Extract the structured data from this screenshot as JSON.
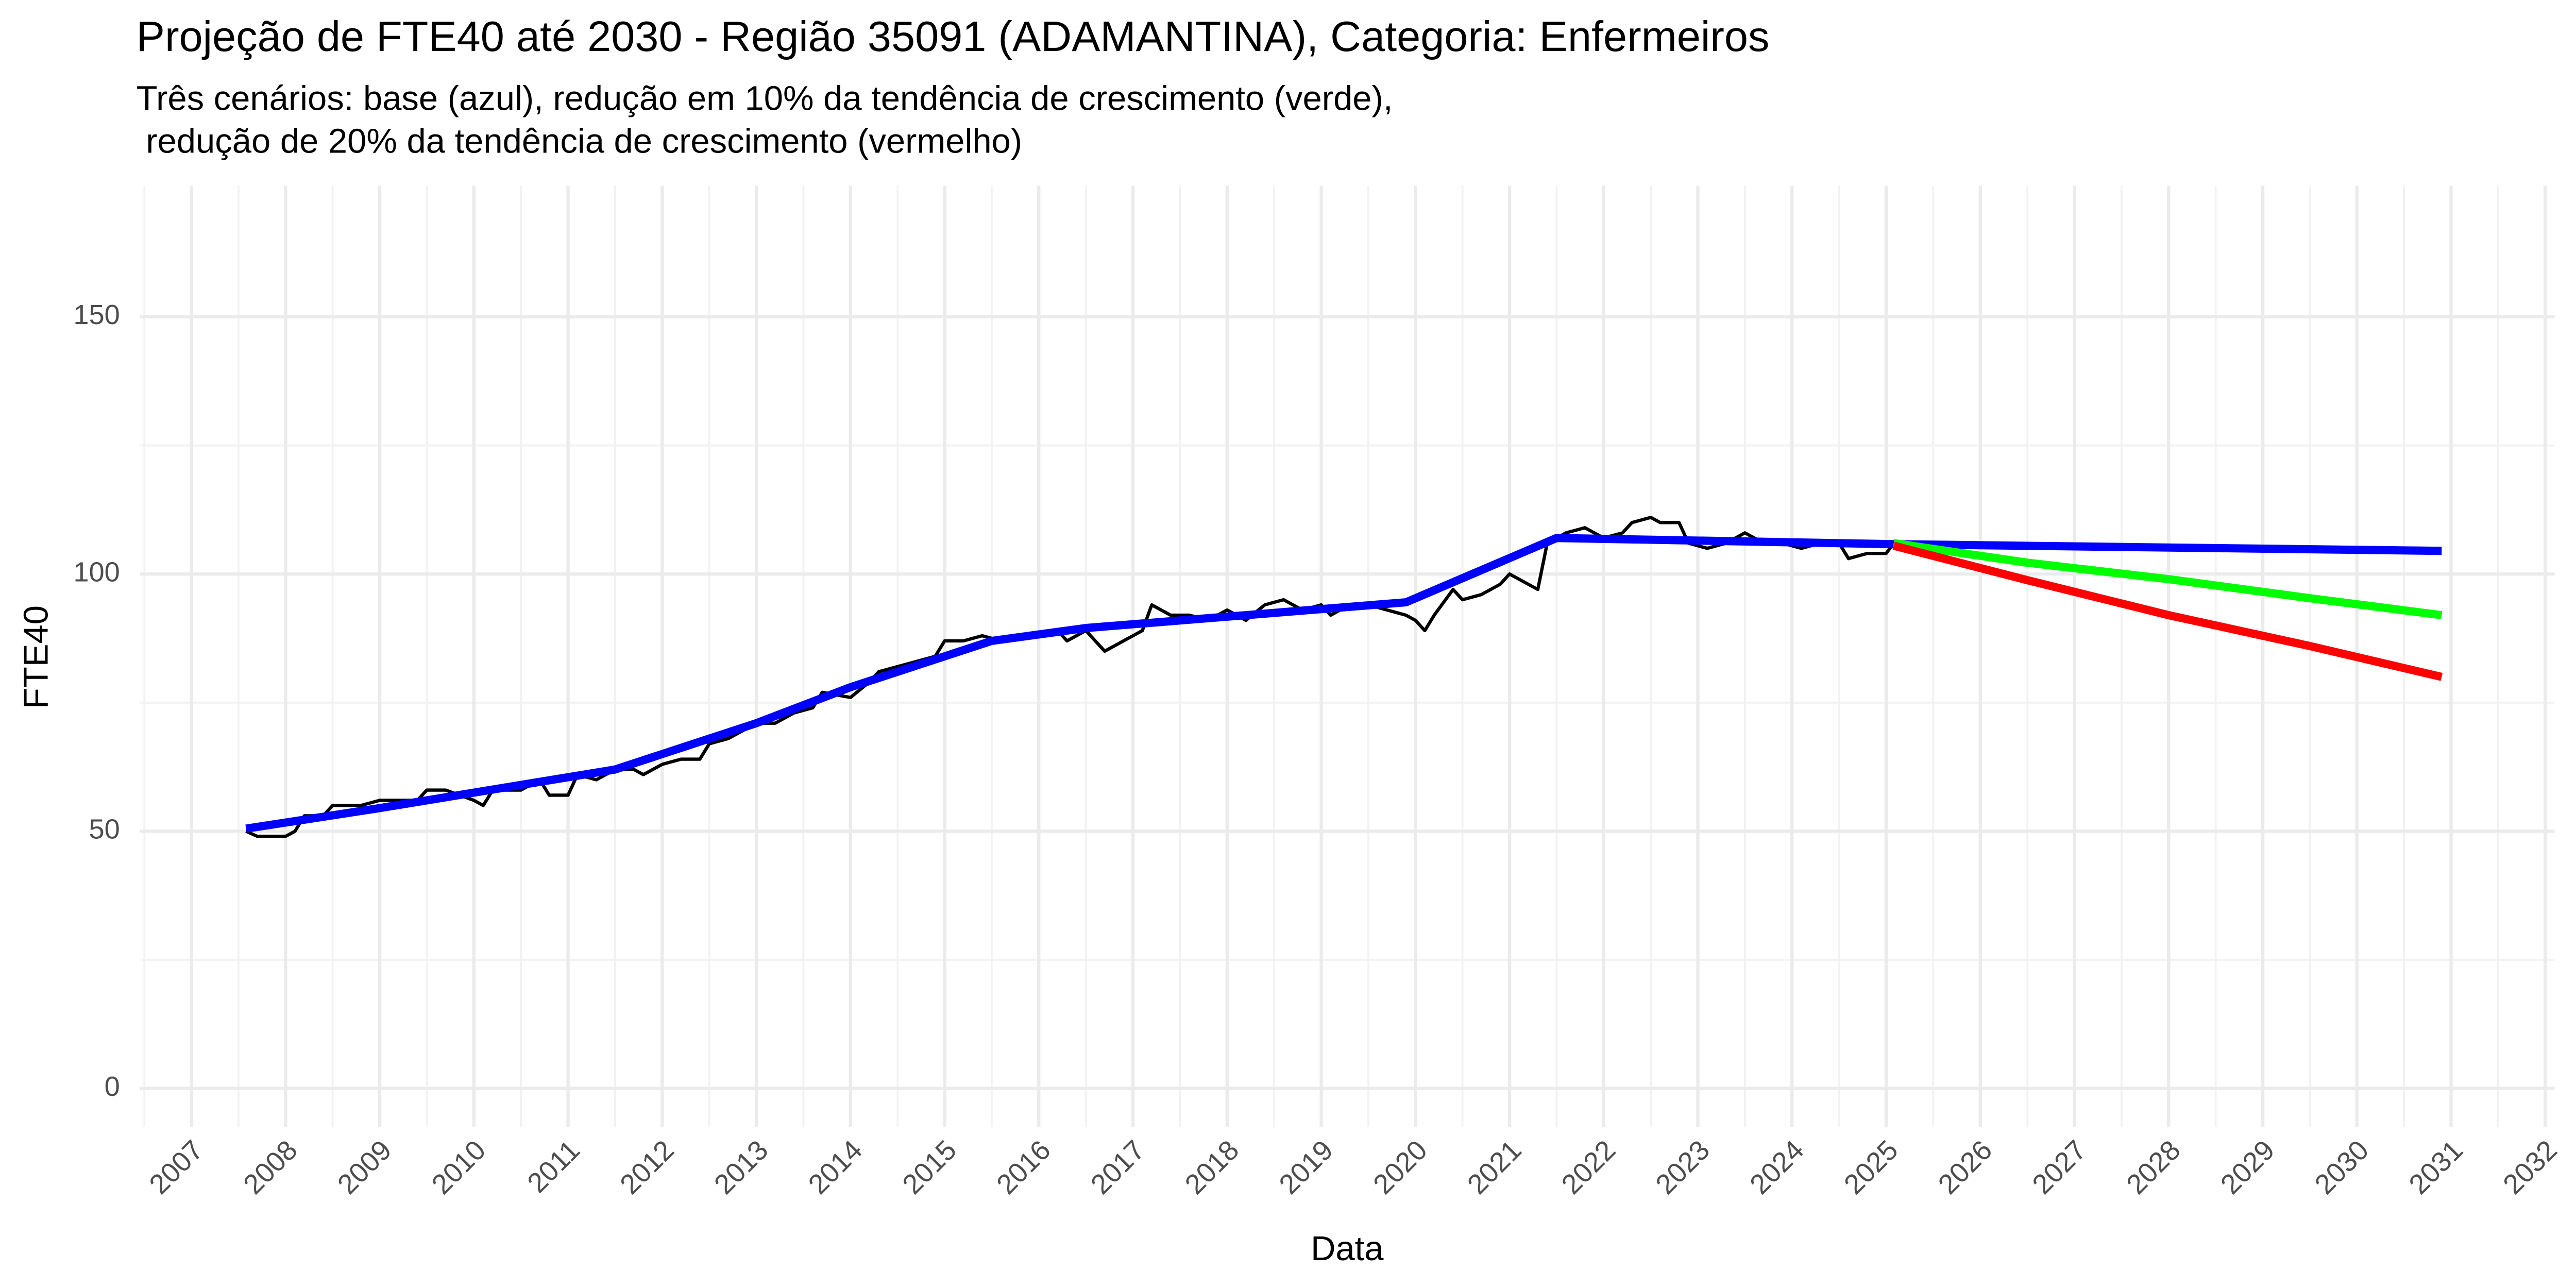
{
  "chart_data": {
    "type": "line",
    "title": "Projeção de FTE40 até 2030 - Região 35091 (ADAMANTINA), Categoria: Enfermeiros",
    "subtitle": [
      "Três cenários: base (azul), redução em 10% da tendência de crescimento (verde),",
      " redução de 20% da tendência de crescimento (vermelho)"
    ],
    "x_label": "Data",
    "y_label": "FTE40",
    "xlim": [
      2006.45,
      2032.1
    ],
    "xticks": [
      2007,
      2008,
      2009,
      2010,
      2011,
      2012,
      2013,
      2014,
      2015,
      2016,
      2017,
      2018,
      2019,
      2020,
      2021,
      2022,
      2023,
      2024,
      2025,
      2026,
      2027,
      2028,
      2029,
      2030,
      2031,
      2032
    ],
    "ylim": [
      -7.5,
      175.5
    ],
    "yticks": [
      0,
      50,
      100,
      150
    ],
    "grid": true,
    "series": [
      {
        "color": "#000000",
        "x": [
          2007.58,
          2007.7,
          2008.0,
          2008.1,
          2008.2,
          2008.4,
          2008.5,
          2008.7,
          2008.8,
          2009.0,
          2009.4,
          2009.5,
          2009.7,
          2010.0,
          2010.1,
          2010.2,
          2010.5,
          2010.7,
          2010.8,
          2011.0,
          2011.1,
          2011.3,
          2011.5,
          2011.7,
          2011.8,
          2012.0,
          2012.2,
          2012.4,
          2012.5,
          2012.7,
          2012.9,
          2013.0,
          2013.2,
          2013.4,
          2013.6,
          2013.7,
          2014.0,
          2014.2,
          2014.3,
          2014.5,
          2014.7,
          2014.9,
          2015.0,
          2015.2,
          2015.4,
          2015.6,
          2015.8,
          2016.0,
          2016.2,
          2016.3,
          2016.5,
          2016.7,
          2016.9,
          2017.0,
          2017.1,
          2017.2,
          2017.4,
          2017.6,
          2017.8,
          2018.0,
          2018.2,
          2018.4,
          2018.6,
          2018.8,
          2019.0,
          2019.1,
          2019.3,
          2019.5,
          2019.7,
          2019.9,
          2020.0,
          2020.1,
          2020.2,
          2020.4,
          2020.5,
          2020.7,
          2020.9,
          2021.0,
          2021.2,
          2021.3,
          2021.4,
          2021.6,
          2021.8,
          2022.0,
          2022.2,
          2022.3,
          2022.5,
          2022.6,
          2022.8,
          2022.9,
          2023.1,
          2023.3,
          2023.5,
          2023.7,
          2023.9,
          2024.1,
          2024.3,
          2024.5,
          2024.6,
          2024.8,
          2025.0,
          2025.08
        ],
        "values": [
          50,
          49,
          49,
          50,
          53,
          53,
          55,
          55,
          55,
          56,
          56,
          58,
          58,
          56,
          55,
          58,
          58,
          60,
          57,
          57,
          61,
          60,
          62,
          62,
          61,
          63,
          64,
          64,
          67,
          68,
          70,
          71,
          71,
          73,
          74,
          77,
          76,
          79,
          81,
          82,
          83,
          84,
          87,
          87,
          88,
          87,
          88,
          88,
          89,
          87,
          89,
          85,
          87,
          88,
          89,
          94,
          92,
          92,
          91,
          93,
          91,
          94,
          95,
          93,
          94,
          92,
          94,
          94,
          93,
          92,
          91,
          89,
          92,
          97,
          95,
          96,
          98,
          100,
          98,
          97,
          106,
          108,
          109,
          107,
          108,
          110,
          111,
          110,
          110,
          106,
          105,
          106,
          108,
          106,
          106,
          105,
          106,
          106,
          103,
          104,
          104,
          106
        ]
      },
      {
        "color": "#0000ff",
        "x": [
          2007.58,
          2009.0,
          2011.5,
          2013.0,
          2014.0,
          2015.5,
          2016.5,
          2019.9,
          2021.5,
          2025.08,
          2030.9
        ],
        "values": [
          50.5,
          54.5,
          62,
          71,
          78,
          87,
          89.5,
          94.5,
          107,
          105.8,
          104.5
        ]
      },
      {
        "color": "#00ff00",
        "x": [
          2025.08,
          2026.5,
          2028.0,
          2029.5,
          2030.9
        ],
        "values": [
          106,
          102.2,
          99,
          95.3,
          92
        ]
      },
      {
        "color": "#ff0000",
        "x": [
          2025.08,
          2026.5,
          2028.0,
          2029.5,
          2030.9
        ],
        "values": [
          105.5,
          98.8,
          92,
          86,
          80
        ]
      }
    ]
  }
}
